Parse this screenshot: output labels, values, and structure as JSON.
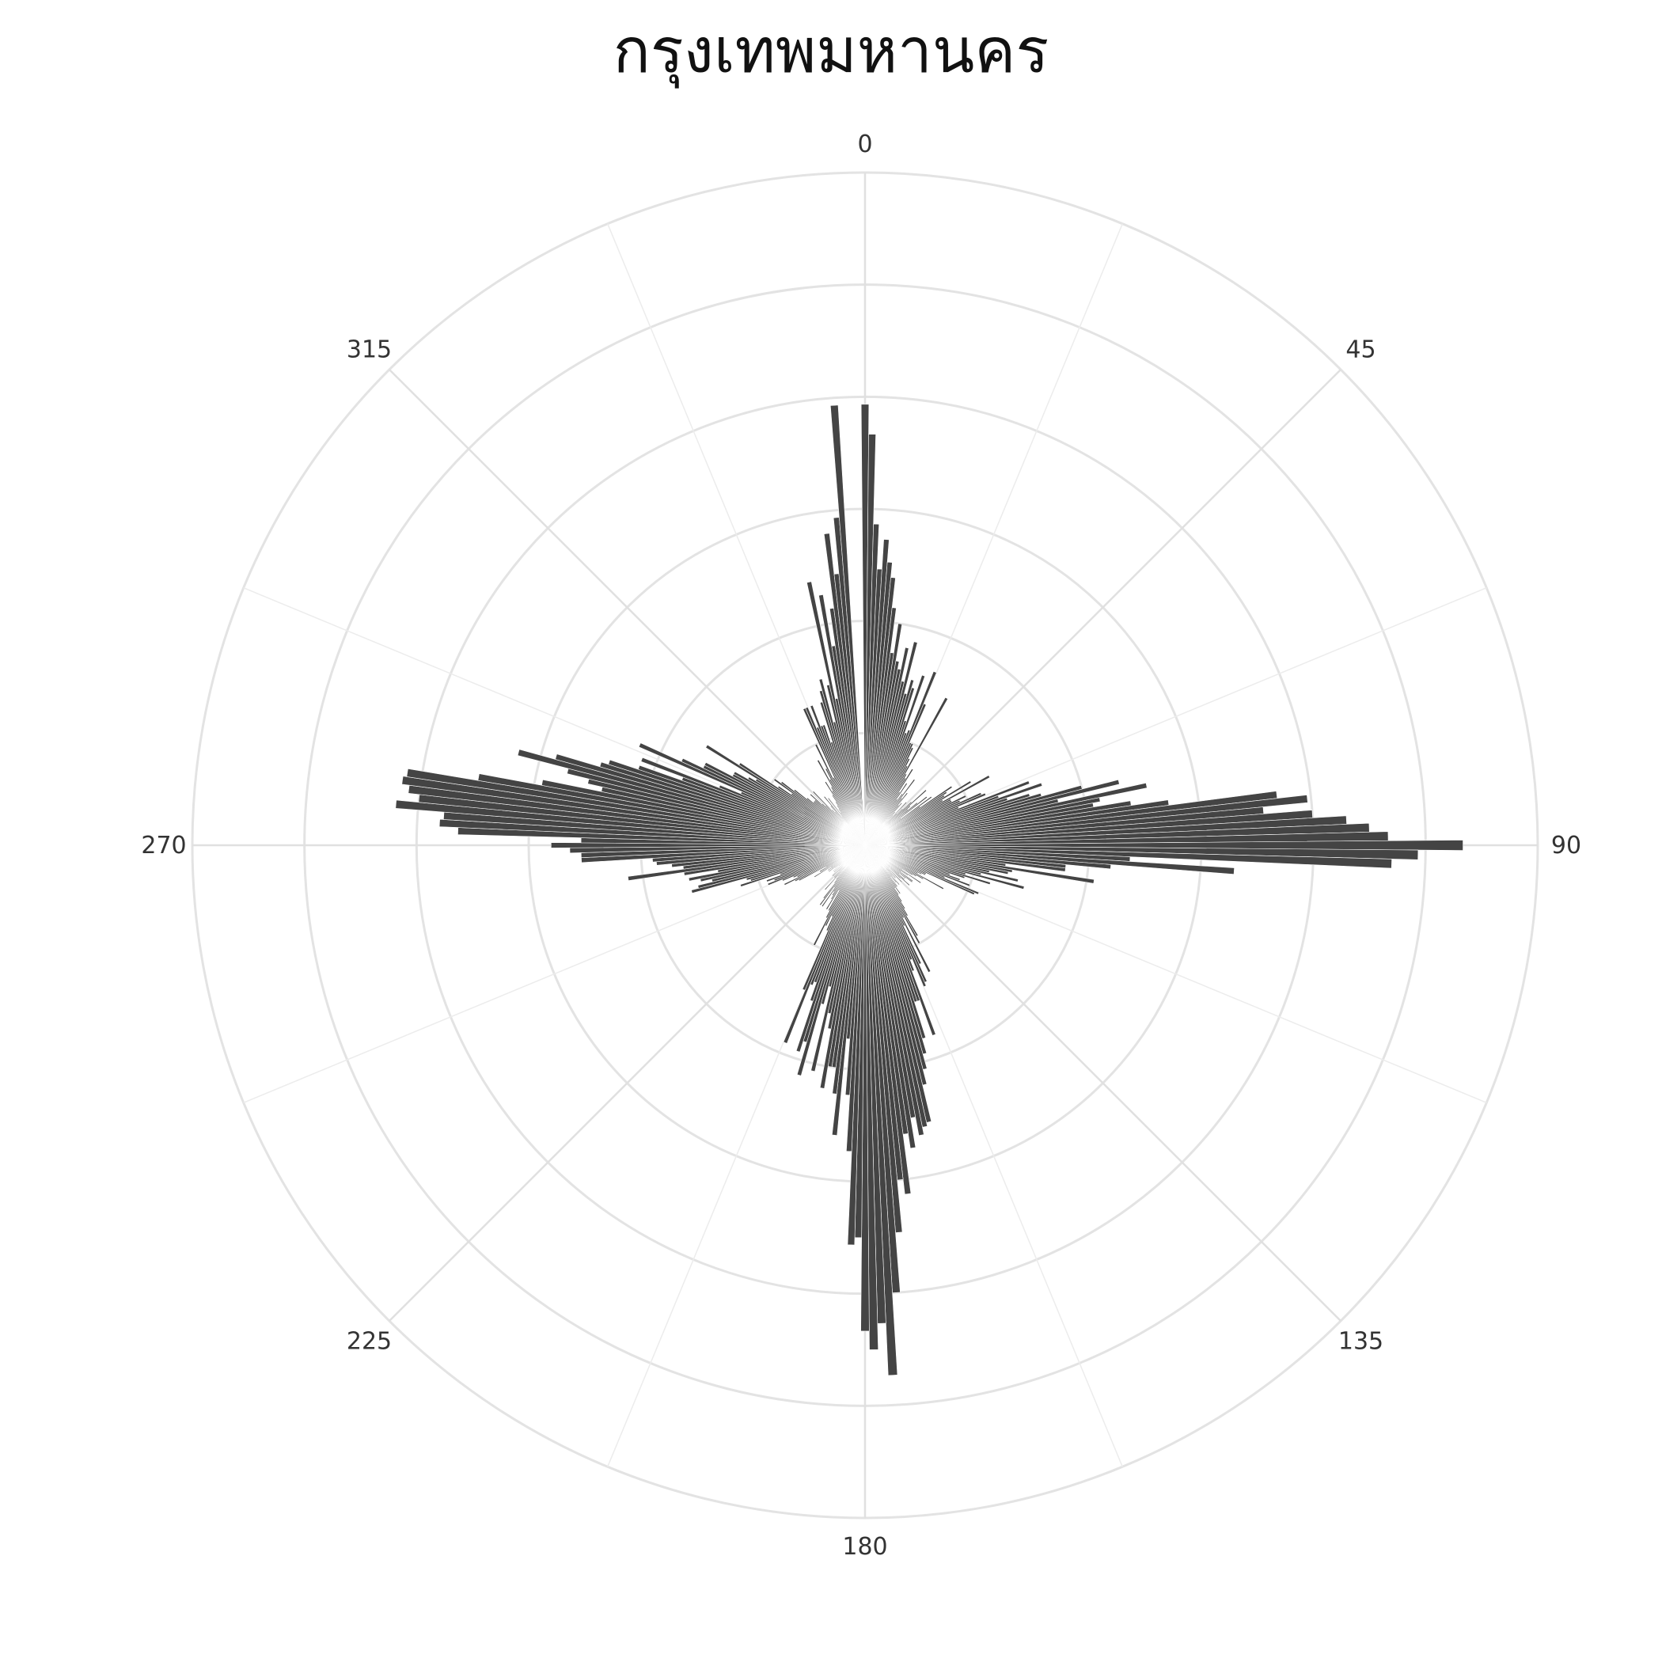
{
  "chart_data": {
    "type": "bar",
    "projection": "polar",
    "title": "กรุงเทพมหานคร",
    "theta_unit": "degrees",
    "theta_direction": "clockwise",
    "theta_zero": "top",
    "angular_ticks": [
      "0",
      "45",
      "90",
      "135",
      "180",
      "225",
      "270",
      "315"
    ],
    "angular_tick_values": [
      0,
      45,
      90,
      135,
      180,
      225,
      270,
      315
    ],
    "radial_gridlines": 6,
    "radial_range": [
      0,
      900
    ],
    "radial_tick_labels_shown": false,
    "grid": true,
    "bar_color": "#444444",
    "bar_edge_color": "#ffffff",
    "bin_width_deg": 1,
    "series": [
      {
        "theta": [
          0,
          1,
          2,
          3,
          4,
          5,
          6,
          7,
          8,
          9,
          10,
          11,
          12,
          13,
          14,
          15,
          16,
          17,
          18,
          19,
          20,
          21,
          22,
          23,
          24,
          25,
          26,
          27,
          28,
          29,
          30,
          31,
          32,
          33,
          34,
          35,
          36,
          37,
          38,
          39,
          40,
          41,
          42,
          43,
          44,
          45,
          46,
          47,
          48,
          49,
          50,
          51,
          52,
          53,
          54,
          55,
          56,
          57,
          58,
          59,
          60,
          61,
          62,
          63,
          64,
          65,
          66,
          67,
          68,
          69,
          70,
          71,
          72,
          73,
          74,
          75,
          76,
          77,
          78,
          79,
          80,
          81,
          82,
          83,
          84,
          85,
          86,
          87,
          88,
          89,
          90,
          91,
          92,
          93,
          94,
          95,
          96,
          97,
          98,
          99,
          100,
          101,
          102,
          103,
          104,
          105,
          106,
          107,
          108,
          109,
          110,
          111,
          112,
          113,
          114,
          115,
          116,
          117,
          118,
          119,
          120,
          121,
          122,
          123,
          124,
          125,
          126,
          127,
          128,
          129,
          130,
          131,
          132,
          133,
          134,
          135,
          136,
          137,
          138,
          139,
          140,
          141,
          142,
          143,
          144,
          145,
          146,
          147,
          148,
          149,
          150,
          151,
          152,
          153,
          154,
          155,
          156,
          157,
          158,
          159,
          160,
          161,
          162,
          163,
          164,
          165,
          166,
          167,
          168,
          169,
          170,
          171,
          172,
          173,
          174,
          175,
          176,
          177,
          178,
          179,
          180,
          181,
          182,
          183,
          184,
          185,
          186,
          187,
          188,
          189,
          190,
          191,
          192,
          193,
          194,
          195,
          196,
          197,
          198,
          199,
          200,
          201,
          202,
          203,
          204,
          205,
          206,
          207,
          208,
          209,
          210,
          211,
          212,
          213,
          214,
          215,
          216,
          217,
          218,
          219,
          220,
          221,
          222,
          223,
          224,
          225,
          226,
          227,
          228,
          229,
          230,
          231,
          232,
          233,
          234,
          235,
          236,
          237,
          238,
          239,
          240,
          241,
          242,
          243,
          244,
          245,
          246,
          247,
          248,
          249,
          250,
          251,
          252,
          253,
          254,
          255,
          256,
          257,
          258,
          259,
          260,
          261,
          262,
          263,
          264,
          265,
          266,
          267,
          268,
          269,
          270,
          271,
          272,
          273,
          274,
          275,
          276,
          277,
          278,
          279,
          280,
          281,
          282,
          283,
          284,
          285,
          286,
          287,
          288,
          289,
          290,
          291,
          292,
          293,
          294,
          295,
          296,
          297,
          298,
          299,
          300,
          301,
          302,
          303,
          304,
          305,
          306,
          307,
          308,
          309,
          310,
          311,
          312,
          313,
          314,
          315,
          316,
          317,
          318,
          319,
          320,
          321,
          322,
          323,
          324,
          325,
          326,
          327,
          328,
          329,
          330,
          331,
          332,
          333,
          334,
          335,
          336,
          337,
          338,
          339,
          340,
          341,
          342,
          343,
          344,
          345,
          346,
          347,
          348,
          349,
          350,
          351,
          352,
          353,
          354,
          355,
          356,
          357,
          358,
          359
        ],
        "r": [
          590,
          550,
          430,
          370,
          410,
          380,
          360,
          320,
          260,
          300,
          250,
          240,
          270,
          225,
          280,
          210,
          230,
          220,
          175,
          240,
          160,
          165,
          250,
          205,
          150,
          150,
          145,
          130,
          120,
          225,
          110,
          105,
          120,
          85,
          100,
          75,
          85,
          110,
          80,
          90,
          70,
          75,
          60,
          55,
          80,
          60,
          70,
          85,
          110,
          80,
          75,
          90,
          105,
          60,
          110,
          90,
          140,
          130,
          125,
          165,
          120,
          190,
          130,
          130,
          150,
          140,
          170,
          175,
          135,
          235,
          190,
          250,
          200,
          230,
          245,
          300,
          350,
          265,
          385,
          320,
          310,
          360,
          410,
          555,
          595,
          535,
          600,
          645,
          675,
          700,
          800,
          740,
          705,
          355,
          495,
          330,
          270,
          270,
          190,
          310,
          200,
          195,
          170,
          210,
          160,
          220,
          140,
          175,
          140,
          120,
          135,
          150,
          115,
          165,
          160,
          90,
          90,
          85,
          80,
          120,
          90,
          80,
          75,
          60,
          90,
          70,
          60,
          80,
          80,
          70,
          60,
          70,
          80,
          65,
          45,
          70,
          50,
          60,
          55,
          70,
          65,
          55,
          70,
          70,
          80,
          70,
          80,
          90,
          100,
          110,
          140,
          150,
          110,
          190,
          120,
          175,
          200,
          205,
          165,
          180,
          270,
          220,
          220,
          270,
          290,
          310,
          330,
          380,
          385,
          395,
          370,
          410,
          390,
          470,
          450,
          520,
          600,
          710,
          640,
          675,
          650,
          525,
          535,
          410,
          335,
          260,
          390,
          335,
          300,
          300,
          330,
          250,
          230,
          310,
          195,
          220,
          320,
          275,
          290,
          220,
          195,
          200,
          285,
          210,
          125,
          105,
          120,
          150,
          110,
          100,
          70,
          100,
          85,
          80,
          75,
          100,
          70,
          100,
          90,
          65,
          60,
          55,
          80,
          60,
          60,
          50,
          60,
          60,
          40,
          55,
          30,
          55,
          45,
          50,
          60,
          55,
          60,
          55,
          80,
          70,
          70,
          60,
          100,
          105,
          120,
          100,
          105,
          120,
          140,
          130,
          140,
          120,
          175,
          160,
          165,
          240,
          230,
          210,
          225,
          240,
          200,
          245,
          320,
          245,
          260,
          280,
          285,
          380,
          380,
          395,
          420,
          380,
          545,
          570,
          565,
          630,
          600,
          615,
          625,
          620,
          525,
          440,
          360,
          380,
          410,
          480,
          430,
          370,
          360,
          320,
          260,
          320,
          210,
          180,
          330,
          270,
          240,
          240,
          200,
          200,
          180,
          170,
          250,
          200,
          140,
          120,
          150,
          140,
          120,
          100,
          90,
          90,
          90,
          100,
          80,
          75,
          100,
          65,
          60,
          70,
          85,
          50,
          80,
          55,
          60,
          65,
          70,
          80,
          100,
          85,
          90,
          130,
          100,
          115,
          150,
          100,
          200,
          200,
          170,
          200,
          170,
          170,
          145,
          200,
          215,
          230,
          170,
          220,
          360,
          200,
          340,
          270,
          320,
          420,
          365,
          440,
          590
        ]
      }
    ]
  }
}
